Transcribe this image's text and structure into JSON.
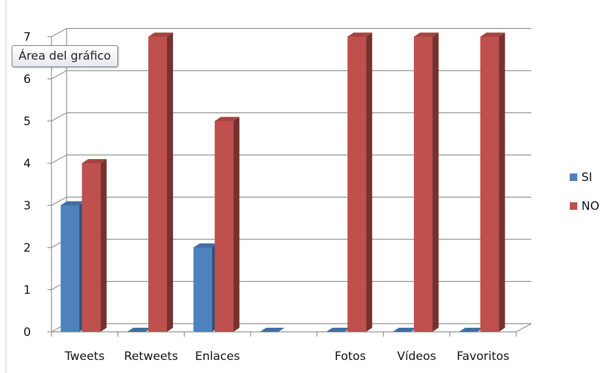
{
  "tooltip": "Área del gráfico",
  "chart_data": {
    "type": "bar",
    "title": "",
    "xlabel": "",
    "ylabel": "",
    "categories": [
      "Tweets",
      "Retweets",
      "Enlaces",
      "",
      "Fotos",
      "Vídeos",
      "Favoritos"
    ],
    "series": [
      {
        "name": "SI",
        "values": [
          3,
          0,
          2,
          0,
          0,
          0,
          0
        ],
        "color": "#4f81bd"
      },
      {
        "name": "NO",
        "values": [
          4,
          7,
          5,
          0,
          7,
          7,
          7
        ],
        "color": "#c0504d"
      }
    ],
    "ylim": [
      0,
      7
    ],
    "yticks": [
      0,
      1,
      2,
      3,
      4,
      5,
      6,
      7
    ],
    "grid": true,
    "legend_position": "right",
    "style": "3d-column"
  }
}
